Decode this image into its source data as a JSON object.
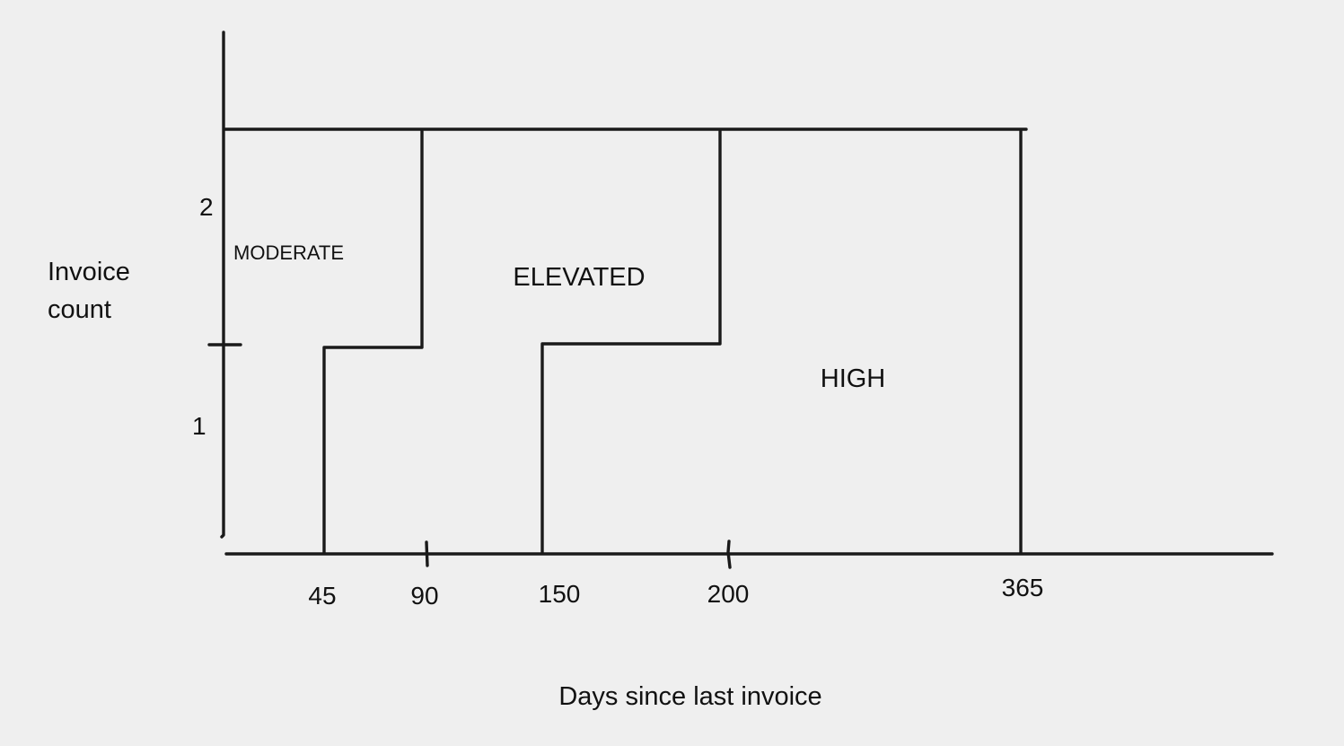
{
  "diagram": {
    "x_axis_title": "Days since last invoice",
    "y_axis_title_lines": [
      "Invoice",
      "count"
    ],
    "x_ticks": [
      "45",
      "90",
      "150",
      "200",
      "365"
    ],
    "y_ticks": [
      "1",
      "2"
    ],
    "zones": [
      {
        "label": "MODERATE"
      },
      {
        "label": "ELEVATED"
      },
      {
        "label": "HIGH"
      }
    ]
  }
}
